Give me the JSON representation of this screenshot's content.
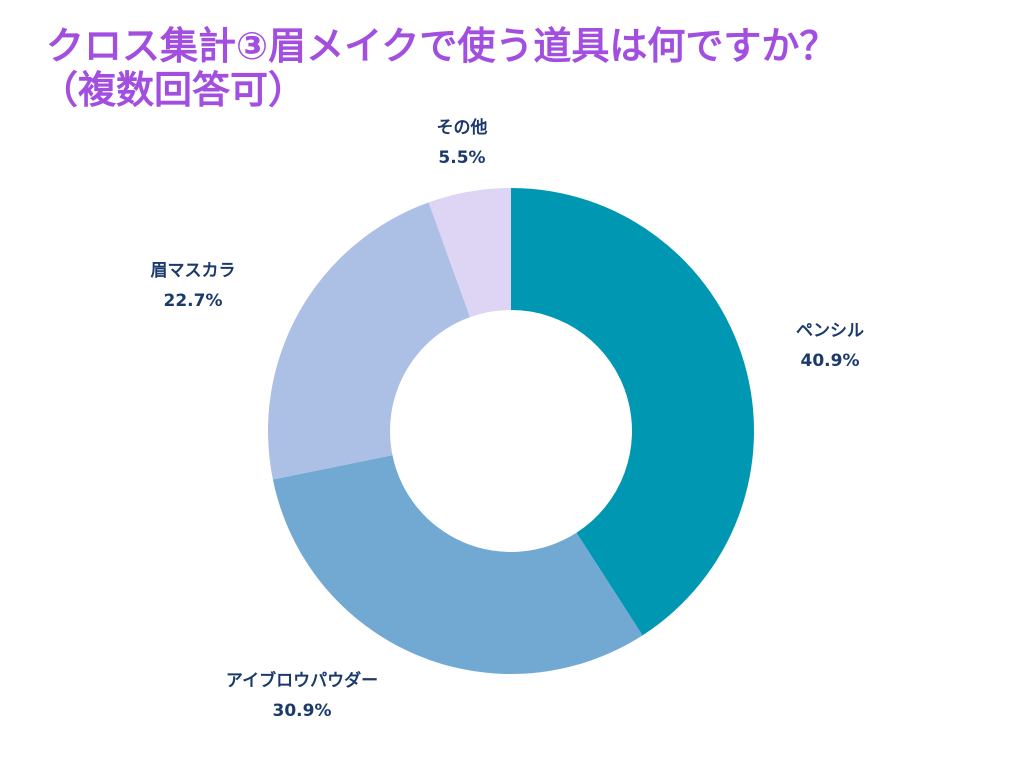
{
  "title": {
    "line1": "クロス集計③眉メイクで使う道具は何ですか？",
    "line2": "（複数回答可）"
  },
  "chart_data": {
    "type": "pie",
    "variant": "donut",
    "title": "クロス集計③眉メイクで使う道具は何ですか？（複数回答可）",
    "unit": "%",
    "categories": [
      "ペンシル",
      "アイブロウパウダー",
      "眉マスカラ",
      "その他"
    ],
    "values": [
      40.9,
      30.9,
      22.7,
      5.5
    ],
    "value_labels": [
      "40.9%",
      "30.9%",
      "22.7%",
      "5.5%"
    ],
    "colors": [
      "#0097b2",
      "#72a9d2",
      "#acbfe5",
      "#ddd5f3"
    ],
    "start": "12 o'clock",
    "direction": "clockwise",
    "legend": "none"
  }
}
